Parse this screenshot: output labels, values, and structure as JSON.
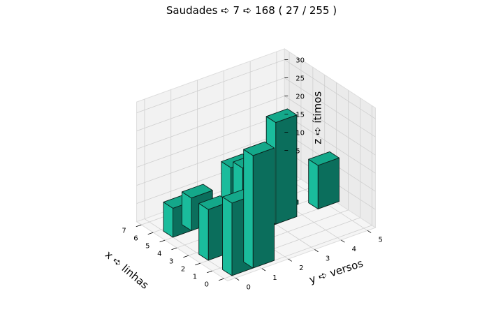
{
  "chart_data": {
    "type": "bar3d",
    "title": "Saudades ➪ 7 ➪ 168 ( 27 / 255 )",
    "xlabel": "x ➪ linhas",
    "ylabel": "y ➪ versos",
    "zlabel": "z ➪ ítimos",
    "x_ticks": [
      "0",
      "1",
      "2",
      "3",
      "4",
      "5",
      "6",
      "7"
    ],
    "y_ticks": [
      "0",
      "1",
      "2",
      "3",
      "4",
      "5"
    ],
    "z_ticks": [
      "5",
      "10",
      "15",
      "20",
      "25",
      "30"
    ],
    "xlim": [
      0,
      7
    ],
    "ylim": [
      0,
      5
    ],
    "zlim": [
      0,
      32
    ],
    "bar_color": "#1abc9c",
    "bars": [
      {
        "x": 0,
        "y": 0,
        "z": 20
      },
      {
        "x": 0,
        "y": 0.8,
        "z": 31
      },
      {
        "x": 2,
        "y": 0,
        "z": 14
      },
      {
        "x": 2,
        "y": 1.3,
        "z": 22
      },
      {
        "x": 3,
        "y": 1.3,
        "z": 20
      },
      {
        "x": 5,
        "y": 0,
        "z": 8
      },
      {
        "x": 5,
        "y": 0.7,
        "z": 9
      },
      {
        "x": 3,
        "y": 2.3,
        "z": 1
      },
      {
        "x": 5,
        "y": 2.1,
        "z": 1
      },
      {
        "x": 3,
        "y": 3.0,
        "z": 28
      },
      {
        "x": 4,
        "y": 3.5,
        "z": 1
      },
      {
        "x": 3,
        "y": 4.6,
        "z": 12
      }
    ]
  }
}
